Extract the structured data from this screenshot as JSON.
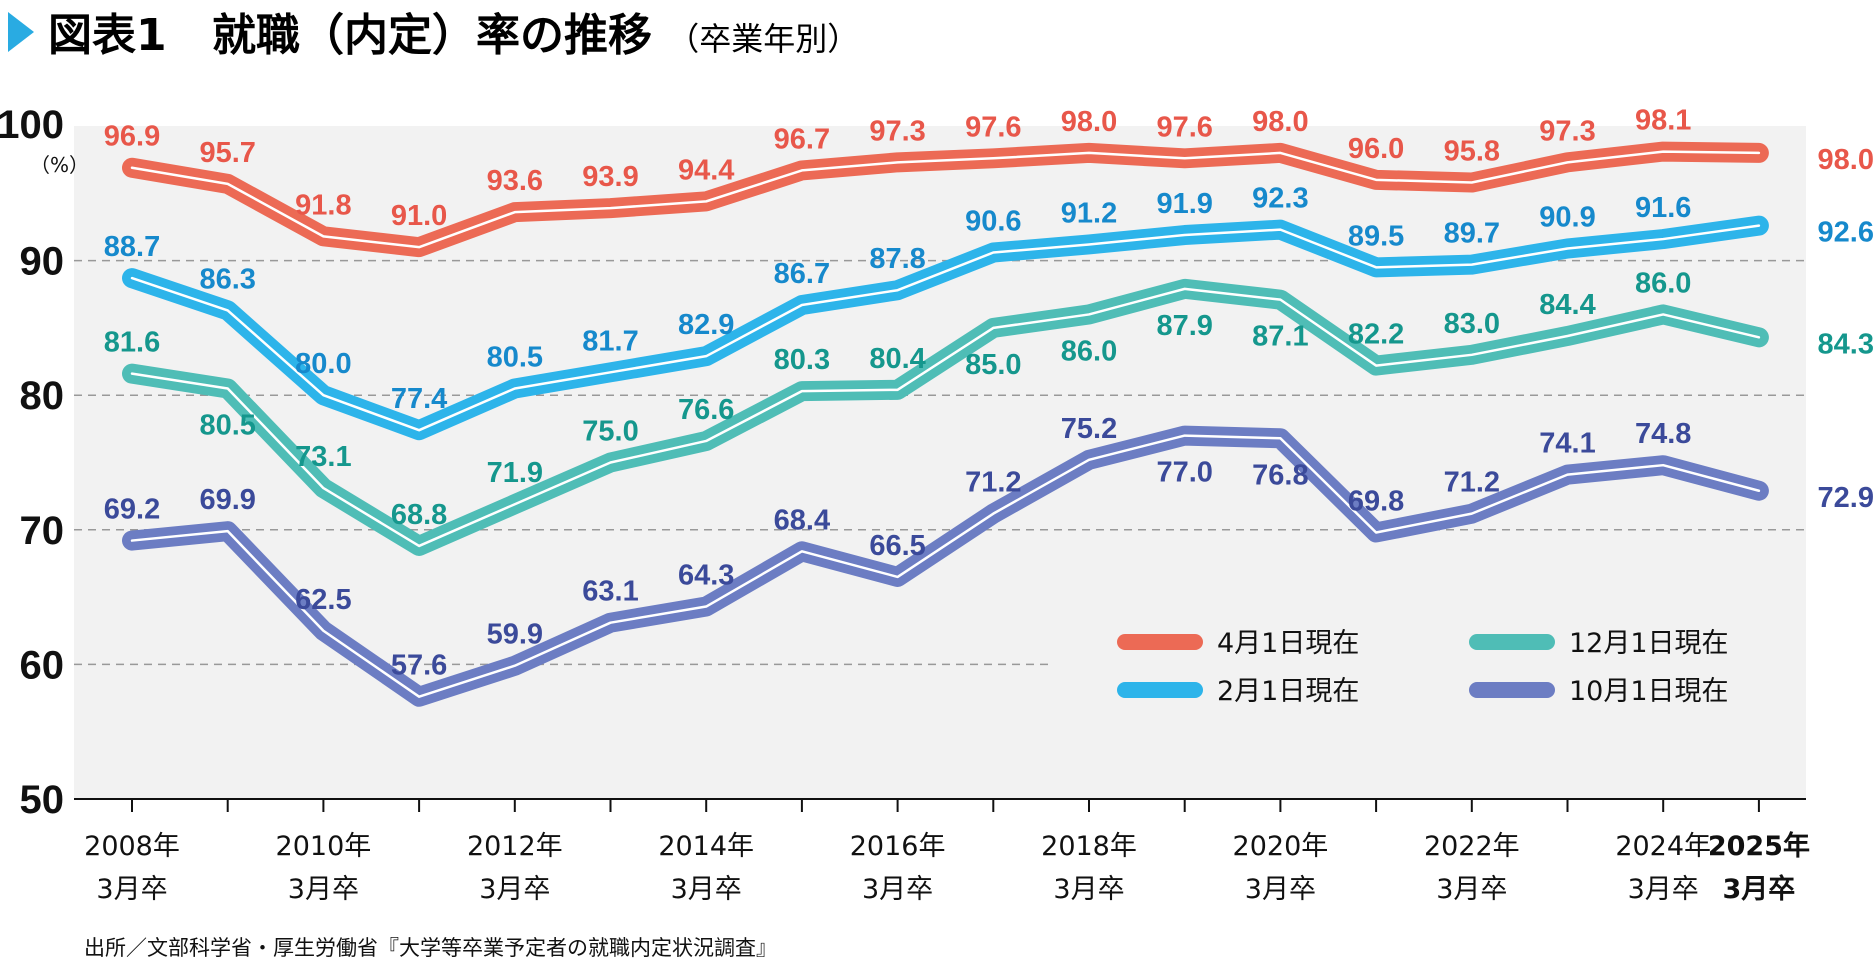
{
  "title": {
    "prefix": "図表1",
    "main": "就職（内定）率の推移",
    "sub": "（卒業年別）",
    "marker_color": "#29abe2"
  },
  "source": "出所／文部科学省・厚生労働省『大学等卒業予定者の就職内定状況調査』",
  "chart_data": {
    "type": "line",
    "x": [
      2008,
      2009,
      2010,
      2011,
      2012,
      2013,
      2014,
      2015,
      2016,
      2017,
      2018,
      2019,
      2020,
      2021,
      2022,
      2023,
      2024,
      2025
    ],
    "x_tick_labels": [
      {
        "x": 2008,
        "line1": "2008年",
        "line2": "3月卒"
      },
      {
        "x": 2010,
        "line1": "2010年",
        "line2": "3月卒"
      },
      {
        "x": 2012,
        "line1": "2012年",
        "line2": "3月卒"
      },
      {
        "x": 2014,
        "line1": "2014年",
        "line2": "3月卒"
      },
      {
        "x": 2016,
        "line1": "2016年",
        "line2": "3月卒"
      },
      {
        "x": 2018,
        "line1": "2018年",
        "line2": "3月卒"
      },
      {
        "x": 2020,
        "line1": "2020年",
        "line2": "3月卒"
      },
      {
        "x": 2022,
        "line1": "2022年",
        "line2": "3月卒"
      },
      {
        "x": 2024,
        "line1": "2024年",
        "line2": "3月卒"
      },
      {
        "x": 2025,
        "line1": "2025年",
        "line2": "3月卒",
        "highlight": "#e0001b"
      }
    ],
    "ylim": [
      50,
      100
    ],
    "y_ticks": [
      50,
      60,
      70,
      80,
      90,
      100
    ],
    "y_unit": "（%）",
    "grid": "dashed horizontal",
    "legend_placement": "bottom-right",
    "series": [
      {
        "name": "4月1日現在",
        "color": "#ec6a55",
        "label_color": "#e8574a",
        "values": [
          96.9,
          95.7,
          91.8,
          91.0,
          93.6,
          93.9,
          94.4,
          96.7,
          97.3,
          97.6,
          98.0,
          97.6,
          98.0,
          96.0,
          95.8,
          97.3,
          98.1,
          98.0
        ]
      },
      {
        "name": "2月1日現在",
        "color": "#2db4ea",
        "label_color": "#1689cc",
        "values": [
          88.7,
          86.3,
          80.0,
          77.4,
          80.5,
          81.7,
          82.9,
          86.7,
          87.8,
          90.6,
          91.2,
          91.9,
          92.3,
          89.5,
          89.7,
          90.9,
          91.6,
          92.6
        ]
      },
      {
        "name": "12月1日現在",
        "color": "#4fbdb6",
        "label_color": "#15978d",
        "values": [
          81.6,
          80.5,
          73.1,
          68.8,
          71.9,
          75.0,
          76.6,
          80.3,
          80.4,
          85.0,
          86.0,
          87.9,
          87.1,
          82.2,
          83.0,
          84.4,
          86.0,
          84.3
        ]
      },
      {
        "name": "10月1日現在",
        "color": "#6c7dc3",
        "label_color": "#3b4a9a",
        "values": [
          69.2,
          69.9,
          62.5,
          57.6,
          59.9,
          63.1,
          64.3,
          68.4,
          66.5,
          71.2,
          75.2,
          77.0,
          76.8,
          69.8,
          71.2,
          74.1,
          74.8,
          72.9
        ]
      }
    ]
  }
}
